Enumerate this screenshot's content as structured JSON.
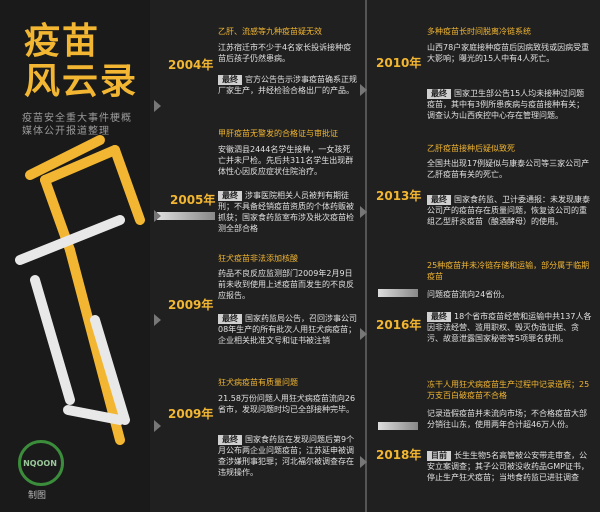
{
  "header": {
    "title_line1": "疫苗",
    "title_line2": "风云录",
    "subtitle": "疫苗安全重大事件梗概 媒体公开报道整理",
    "logo": "NQOON",
    "credit": "制图"
  },
  "left_entries": [
    {
      "year": "2004年",
      "title": "乙肝、流感等九种疫苗疑无效",
      "text": "江苏宿迁市不少于4名家长投诉接种疫苗后孩子仍然患病。",
      "final": "官方公告告示涉事疫苗确系正规厂家生产，并经检验合格出厂的产品。"
    },
    {
      "year": "2005年",
      "title": "甲肝疫苗无警发的合格证与审批证",
      "text": "安徽泗县2444名学生接种，一女孩死亡并未尸检。先后共311名学生出现群体性心因反应症状住院治疗。",
      "final": "涉事医院相关人员被判有期徒刑；不具备经销疫苗资质的个体药贩被抓获；国家食药监室布涉及批次疫苗检测全部合格"
    },
    {
      "year": "2009年",
      "title": "狂犬疫苗非法添加核酸",
      "text": "药品不良反应监测部门2009年2月9日前未收到使用上述疫苗而发生的不良反应报告。",
      "final": "国家药监局公告，召回涉事公司08年生产的所有批次人用狂犬病疫苗；企业相关批准文号和证书被注销"
    },
    {
      "year": "2009年",
      "title": "狂犬病疫苗有质量问题",
      "text": "21.58万份问题人用狂犬病疫苗流向26省市，发现问题时均已全部接种完毕。",
      "final": "国家食药监在发现问题后第9个月公布两企业问题疫苗；江苏延申被调查涉嫌刑事犯罪；河北福尔被调查存在违规操作。"
    }
  ],
  "right_entries": [
    {
      "year": "2010年",
      "title": "多种疫苗长时间脱离冷链系统",
      "text": "山西78户家庭接种疫苗后因病致残或因病受重大影响；曝光的15人中有4人死亡。",
      "final": "国家卫生部公告15人均未接种过问题疫苗，其中有3例所患疾病与疫苗接种有关；调查认为山西疾控中心存在管理问题。"
    },
    {
      "year": "2013年",
      "title": "乙肝疫苗接种后疑似致死",
      "text": "全国共出现17例疑似与康泰公司等三家公司产乙肝疫苗有关的死亡。",
      "final": "国家食药监、卫计委通报：未发现康泰公司产的疫苗存在质量问题，恢复该公司的重组乙型肝炎疫苗（酿酒酵母）的使用。"
    },
    {
      "year": "2016年",
      "title": "25种疫苗并未冷链存储和运输，部分属于临期疫苗",
      "text": "问题疫苗流向24省份。",
      "final": "18个省市疫苗经营和运输中共137人各因非法经营、滥用职权、毁灭伪造证据、贪污、故意泄露国家秘密等5项罪名获刑。"
    },
    {
      "year": "2018年",
      "title": "冻干人用狂犬病疫苗生产过程中记录造假；25万支百白破疫苗不合格",
      "text": "记录造假疫苗并未流向市场；不合格疫苗大部分销往山东，使用两年合计超46万人份。",
      "final": "长生生物5名高管被公安带走审查，公安立案调查；其子公司被没收药品GMP证书，停止生产狂犬疫苗；当地食药监已进驻调查"
    }
  ],
  "labels": {
    "final": "最终",
    "current": "目前"
  },
  "colors": {
    "accent": "#f2b632",
    "background": "#202020"
  }
}
